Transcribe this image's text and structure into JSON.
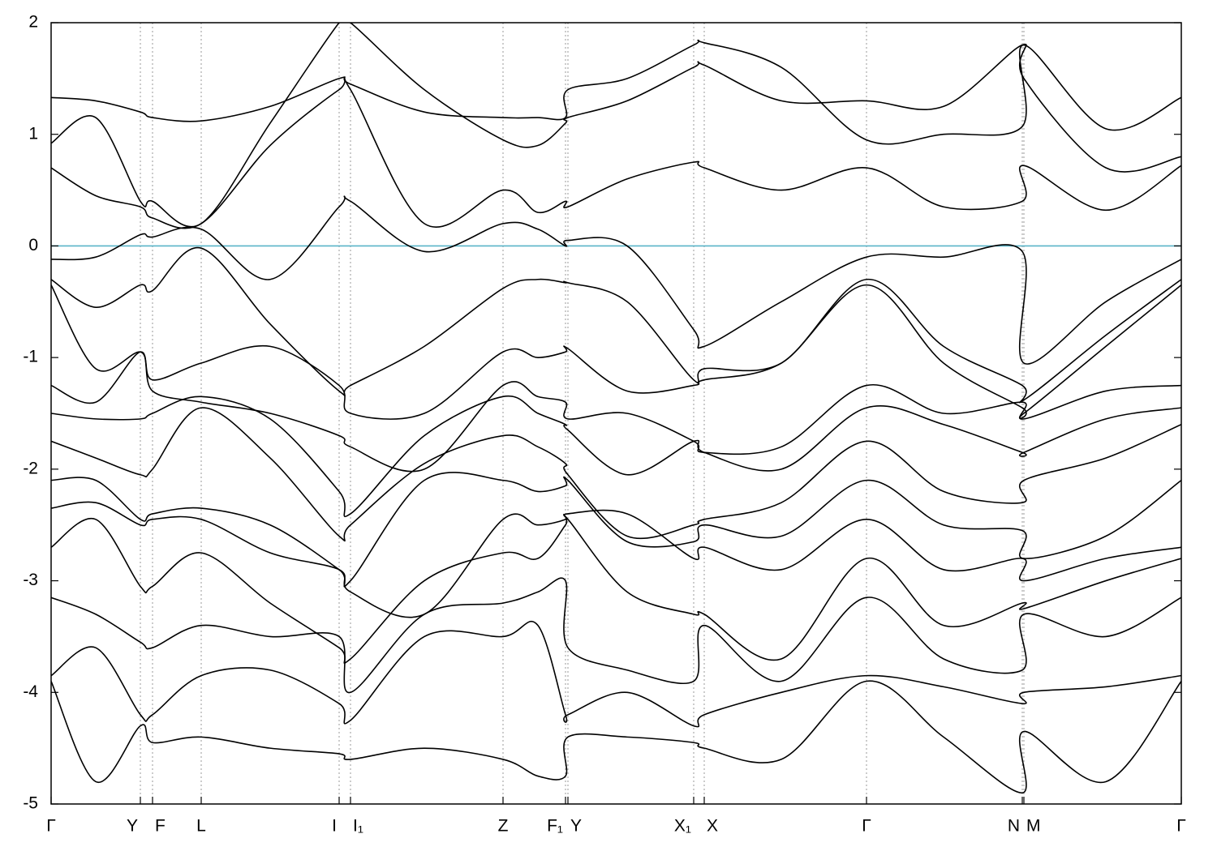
{
  "chart_data": {
    "type": "line",
    "xlim": [
      0,
      13.93
    ],
    "ylim": [
      -5,
      2
    ],
    "yticks": [
      -5,
      -4,
      -3,
      -2,
      -1,
      0,
      1,
      2
    ],
    "xticks": [
      {
        "value": 0,
        "label": "Γ"
      },
      {
        "value": 1.1,
        "label": "Y"
      },
      {
        "value": 1.25,
        "label": "F"
      },
      {
        "value": 1.85,
        "label": "L"
      },
      {
        "value": 3.55,
        "label": "I"
      },
      {
        "value": 3.69,
        "label": "I₁"
      },
      {
        "value": 5.57,
        "label": "Z"
      },
      {
        "value": 6.34,
        "label": "F₁"
      },
      {
        "value": 6.37,
        "label": "Y"
      },
      {
        "value": 7.92,
        "label": "X₁"
      },
      {
        "value": 8.05,
        "label": "X"
      },
      {
        "value": 10.05,
        "label": "Γ"
      },
      {
        "value": 11.97,
        "label": "N"
      },
      {
        "value": 11.99,
        "label": "M"
      },
      {
        "value": 13.93,
        "label": "Γ"
      }
    ],
    "xgrid": true,
    "ygrid": false,
    "line_color": "#000000",
    "fermi_level": {
      "value": 0,
      "color": "#5ab4c8"
    },
    "x": [
      0,
      0.55,
      1.1,
      1.25,
      1.85,
      2.7,
      3.55,
      3.69,
      4.6,
      5.57,
      6.0,
      6.34,
      6.37,
      7.1,
      7.92,
      8.05,
      9.0,
      10.05,
      11.0,
      11.97,
      11.99,
      13.0,
      13.93
    ],
    "series": [
      {
        "values": [
          -0.12,
          -0.1,
          0.1,
          0.08,
          0.15,
          -0.3,
          0.35,
          0.4,
          -0.05,
          0.2,
          0.15,
          0.0,
          0.05,
          0.0,
          -0.75,
          -0.9,
          -0.5,
          -0.1,
          -0.1,
          -0.05,
          -1.05,
          -0.5,
          -0.12
        ]
      },
      {
        "values": [
          0.7,
          0.45,
          0.35,
          0.25,
          0.2,
          0.9,
          1.4,
          1.4,
          0.2,
          0.5,
          0.3,
          0.4,
          0.35,
          0.6,
          0.75,
          0.7,
          0.5,
          0.7,
          0.35,
          0.4,
          0.72,
          0.32,
          0.72
        ]
      },
      {
        "values": [
          0.92,
          1.15,
          0.4,
          0.4,
          0.2,
          1.1,
          2.0,
          2.0,
          1.4,
          0.95,
          0.9,
          1.1,
          1.15,
          1.3,
          1.6,
          1.62,
          1.3,
          1.3,
          1.25,
          1.8,
          1.5,
          0.7,
          0.8
        ]
      },
      {
        "values": [
          1.33,
          1.3,
          1.2,
          1.15,
          1.12,
          1.25,
          1.5,
          1.45,
          1.2,
          1.15,
          1.15,
          1.15,
          1.4,
          1.5,
          1.8,
          1.82,
          1.6,
          0.95,
          1.0,
          1.07,
          1.8,
          1.05,
          1.33
        ]
      },
      {
        "values": [
          -0.3,
          -0.55,
          -0.35,
          -0.4,
          -0.02,
          -0.7,
          -1.3,
          -1.25,
          -0.9,
          -0.38,
          -0.3,
          -0.33,
          -0.33,
          -0.5,
          -1.2,
          -1.1,
          -1.05,
          -0.3,
          -0.9,
          -1.25,
          -1.38,
          -0.8,
          -0.3
        ]
      },
      {
        "values": [
          -0.35,
          -1.1,
          -0.95,
          -1.2,
          -1.05,
          -0.9,
          -1.25,
          -1.5,
          -1.5,
          -0.95,
          -1.0,
          -0.95,
          -0.92,
          -1.3,
          -1.25,
          -1.2,
          -1.05,
          -0.35,
          -1.05,
          -1.45,
          -1.5,
          -0.9,
          -0.35
        ]
      },
      {
        "values": [
          -1.25,
          -1.4,
          -0.95,
          -1.3,
          -1.4,
          -1.5,
          -1.7,
          -1.8,
          -2.0,
          -1.25,
          -1.35,
          -1.4,
          -1.55,
          -1.5,
          -1.75,
          -1.85,
          -1.8,
          -1.25,
          -1.5,
          -1.4,
          -1.55,
          -1.3,
          -1.25
        ]
      },
      {
        "values": [
          -1.5,
          -1.55,
          -1.55,
          -1.5,
          -1.35,
          -1.55,
          -2.2,
          -2.4,
          -1.7,
          -1.35,
          -1.5,
          -1.6,
          -1.65,
          -2.05,
          -1.75,
          -1.85,
          -2.0,
          -1.45,
          -1.6,
          -1.85,
          -1.85,
          -1.55,
          -1.45
        ]
      },
      {
        "values": [
          -1.75,
          -1.9,
          -2.05,
          -2.0,
          -1.45,
          -1.9,
          -2.6,
          -2.5,
          -1.95,
          -1.7,
          -1.8,
          -1.95,
          -2.05,
          -2.6,
          -2.5,
          -2.45,
          -2.3,
          -1.75,
          -2.2,
          -2.3,
          -2.1,
          -1.9,
          -1.6
        ]
      },
      {
        "values": [
          -2.1,
          -2.1,
          -2.45,
          -2.4,
          -2.35,
          -2.5,
          -2.9,
          -3.0,
          -2.1,
          -2.1,
          -2.2,
          -2.15,
          -2.1,
          -2.65,
          -2.65,
          -2.5,
          -2.6,
          -2.1,
          -2.5,
          -2.55,
          -2.8,
          -2.6,
          -2.1
        ]
      },
      {
        "values": [
          -2.35,
          -2.3,
          -2.5,
          -2.45,
          -2.45,
          -2.75,
          -2.9,
          -3.1,
          -3.3,
          -2.45,
          -2.5,
          -2.45,
          -2.4,
          -2.4,
          -2.8,
          -2.7,
          -2.9,
          -2.45,
          -2.9,
          -2.8,
          -3.0,
          -2.8,
          -2.7
        ]
      },
      {
        "values": [
          -2.7,
          -2.45,
          -3.05,
          -3.05,
          -2.75,
          -3.2,
          -3.6,
          -3.7,
          -3.0,
          -2.75,
          -2.8,
          -2.5,
          -2.45,
          -3.1,
          -3.3,
          -3.3,
          -3.7,
          -2.8,
          -3.4,
          -3.2,
          -3.25,
          -3.0,
          -2.8
        ]
      },
      {
        "values": [
          -3.15,
          -3.3,
          -3.55,
          -3.6,
          -3.4,
          -3.5,
          -3.5,
          -4.0,
          -3.3,
          -3.2,
          -3.1,
          -3.0,
          -3.6,
          -3.8,
          -3.9,
          -3.4,
          -3.9,
          -3.15,
          -3.7,
          -3.8,
          -3.3,
          -3.5,
          -3.15
        ]
      },
      {
        "values": [
          -3.85,
          -3.6,
          -4.2,
          -4.2,
          -3.85,
          -3.8,
          -4.1,
          -4.25,
          -3.5,
          -3.5,
          -3.4,
          -4.2,
          -4.2,
          -4.0,
          -4.3,
          -4.2,
          -4.0,
          -3.85,
          -3.95,
          -4.1,
          -4.0,
          -3.95,
          -3.85
        ]
      },
      {
        "values": [
          -3.9,
          -4.8,
          -4.3,
          -4.45,
          -4.4,
          -4.5,
          -4.55,
          -4.6,
          -4.5,
          -4.6,
          -4.75,
          -4.75,
          -4.4,
          -4.4,
          -4.45,
          -4.5,
          -4.6,
          -3.9,
          -4.4,
          -4.9,
          -4.35,
          -4.8,
          -3.9
        ]
      }
    ]
  }
}
